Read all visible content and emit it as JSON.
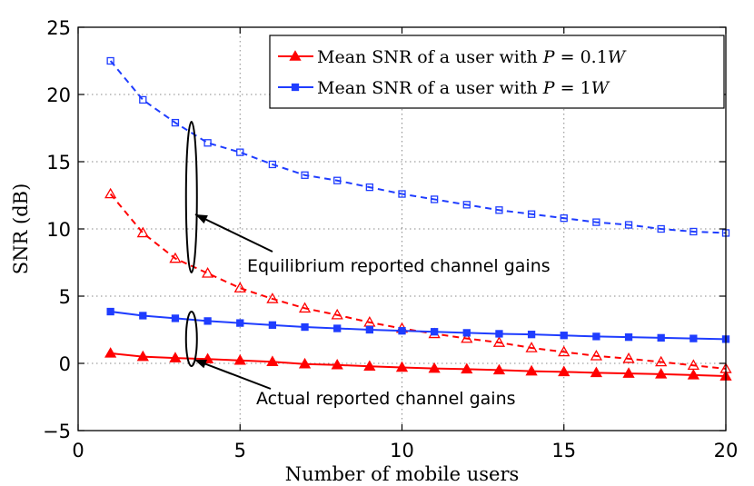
{
  "chart_data": {
    "type": "line",
    "title": "",
    "xlabel": "Number of mobile users",
    "ylabel": "SNR (dB)",
    "xlim": [
      0,
      20
    ],
    "ylim": [
      -5,
      25
    ],
    "xticks": [
      0,
      5,
      10,
      15,
      20
    ],
    "yticks": [
      -5,
      0,
      5,
      10,
      15,
      20,
      25
    ],
    "grid": true,
    "legend_position": "top-right",
    "x": [
      1,
      2,
      3,
      4,
      5,
      6,
      7,
      8,
      9,
      10,
      11,
      12,
      13,
      14,
      15,
      16,
      17,
      18,
      19,
      20
    ],
    "series": [
      {
        "name": "Mean SNR of a user with P = 0.1W (actual reported channel gains)",
        "color": "#ff0000",
        "marker": "filled-triangle",
        "style": "solid",
        "values": [
          0.75,
          0.5,
          0.4,
          0.32,
          0.22,
          0.12,
          -0.05,
          -0.12,
          -0.22,
          -0.3,
          -0.38,
          -0.43,
          -0.5,
          -0.58,
          -0.63,
          -0.7,
          -0.75,
          -0.8,
          -0.87,
          -0.95
        ]
      },
      {
        "name": "Mean SNR of a user with P = 0.1W (equilibrium reported channel gains)",
        "color": "#ff0000",
        "marker": "open-triangle",
        "style": "dashed",
        "values": [
          12.6,
          9.7,
          7.8,
          6.7,
          5.6,
          4.8,
          4.1,
          3.6,
          3.05,
          2.6,
          2.2,
          1.85,
          1.55,
          1.15,
          0.85,
          0.55,
          0.35,
          0.1,
          -0.15,
          -0.4
        ]
      },
      {
        "name": "Mean SNR of a user with P = 1W (actual reported channel gains)",
        "color": "#1f3dff",
        "marker": "filled-square",
        "style": "solid",
        "values": [
          3.85,
          3.55,
          3.35,
          3.15,
          3.0,
          2.85,
          2.7,
          2.6,
          2.5,
          2.42,
          2.35,
          2.27,
          2.2,
          2.15,
          2.08,
          2.0,
          1.95,
          1.9,
          1.85,
          1.8
        ]
      },
      {
        "name": "Mean SNR of a user with P = 1W (equilibrium reported channel gains)",
        "color": "#1f3dff",
        "marker": "open-square",
        "style": "dashed",
        "values": [
          22.5,
          19.6,
          17.9,
          16.4,
          15.7,
          14.8,
          14.0,
          13.6,
          13.1,
          12.6,
          12.2,
          11.8,
          11.4,
          11.1,
          10.8,
          10.5,
          10.3,
          10.0,
          9.8,
          9.7
        ]
      }
    ],
    "legend": [
      {
        "prefix": "Mean SNR of a user with ",
        "var": "P",
        "eq": " = 0.1",
        "unit": "W",
        "color": "#ff0000",
        "marker": "filled-triangle"
      },
      {
        "prefix": "Mean SNR of a user with ",
        "var": "P",
        "eq": " = 1",
        "unit": "W",
        "color": "#1f3dff",
        "marker": "filled-square"
      }
    ],
    "annotations": [
      {
        "text": "Equilibrium reported channel gains",
        "points_to": "ellipse around dashed curves at x = 3.5"
      },
      {
        "text": "Actual reported channel gains",
        "points_to": "ellipse around solid curves at x = 3.5"
      }
    ]
  }
}
